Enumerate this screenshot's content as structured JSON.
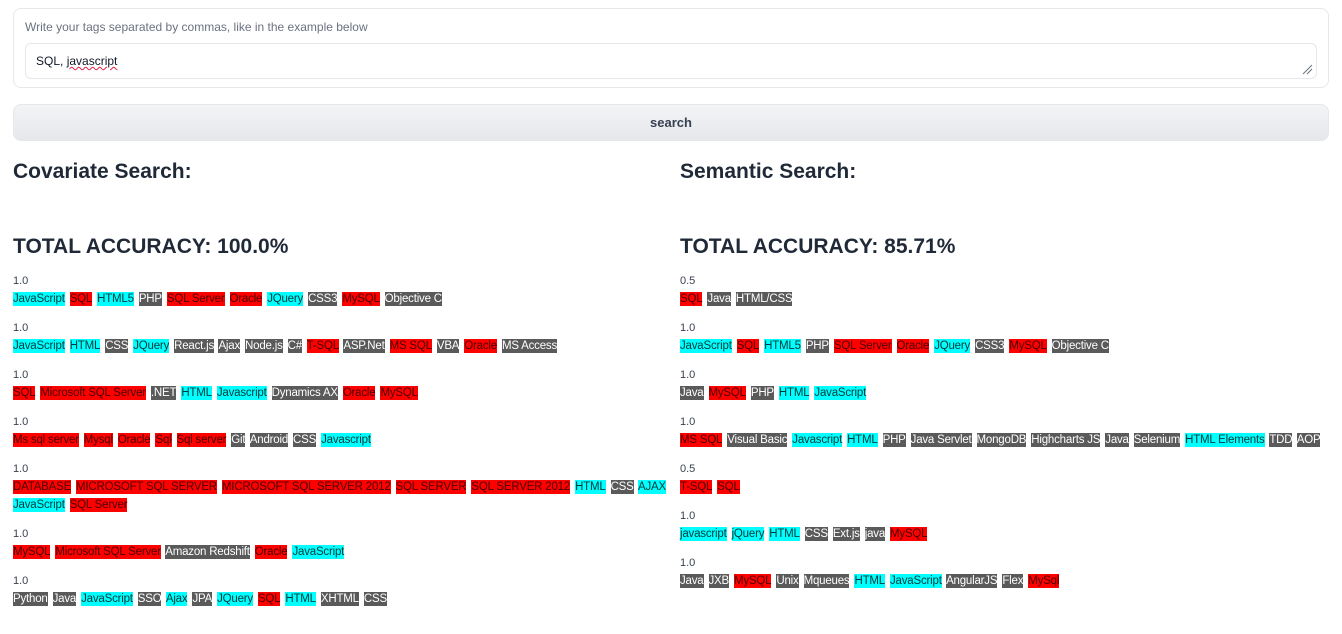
{
  "input": {
    "label": "Write your tags separated by commas, like in the example below",
    "value_plain": "SQL, ",
    "value_misspelled": "javascript"
  },
  "search_button": {
    "label": "search"
  },
  "colors": {
    "red_tag": "#ff0000",
    "cyan_tag": "#00ffff",
    "gray_tag": "#5a5a5a"
  },
  "covariate": {
    "title": "Covariate Search:",
    "accuracy": "TOTAL ACCURACY: 100.0%",
    "results": [
      {
        "score": "1.0",
        "tags": [
          {
            "t": "JavaScript",
            "c": "cyan"
          },
          {
            "t": "SQL",
            "c": "red"
          },
          {
            "t": "HTML5",
            "c": "cyan"
          },
          {
            "t": "PHP",
            "c": "gray"
          },
          {
            "t": "SQL Server",
            "c": "red"
          },
          {
            "t": "Oracle",
            "c": "red"
          },
          {
            "t": "JQuery",
            "c": "cyan"
          },
          {
            "t": "CSS3",
            "c": "gray"
          },
          {
            "t": "MySQL",
            "c": "red"
          },
          {
            "t": "Objective C",
            "c": "gray"
          }
        ]
      },
      {
        "score": "1.0",
        "tags": [
          {
            "t": "JavaScript",
            "c": "cyan"
          },
          {
            "t": "HTML",
            "c": "cyan"
          },
          {
            "t": "CSS",
            "c": "gray"
          },
          {
            "t": "JQuery",
            "c": "cyan"
          },
          {
            "t": "React.js",
            "c": "gray"
          },
          {
            "t": "Ajax",
            "c": "gray"
          },
          {
            "t": "Node.js",
            "c": "gray"
          },
          {
            "t": "C#",
            "c": "gray"
          },
          {
            "t": "T-SQL",
            "c": "red"
          },
          {
            "t": "ASP.Net",
            "c": "gray"
          },
          {
            "t": "MS SQL",
            "c": "red"
          },
          {
            "t": "VBA",
            "c": "gray"
          },
          {
            "t": "Oracle",
            "c": "red"
          },
          {
            "t": "MS Access",
            "c": "gray"
          }
        ]
      },
      {
        "score": "1.0",
        "tags": [
          {
            "t": "SQL",
            "c": "red"
          },
          {
            "t": "Microsoft SQL Server",
            "c": "red"
          },
          {
            "t": ".NET",
            "c": "gray"
          },
          {
            "t": "HTML",
            "c": "cyan"
          },
          {
            "t": "Javascript",
            "c": "cyan"
          },
          {
            "t": "Dynamics AX",
            "c": "gray"
          },
          {
            "t": "Oracle",
            "c": "red"
          },
          {
            "t": "MySQL",
            "c": "red"
          }
        ]
      },
      {
        "score": "1.0",
        "tags": [
          {
            "t": "Ms sql server",
            "c": "red"
          },
          {
            "t": "Mysql",
            "c": "red"
          },
          {
            "t": "Oracle",
            "c": "red"
          },
          {
            "t": "Sql",
            "c": "red"
          },
          {
            "t": "Sql server",
            "c": "red"
          },
          {
            "t": "Git",
            "c": "gray"
          },
          {
            "t": "Android",
            "c": "gray"
          },
          {
            "t": "CSS",
            "c": "gray"
          },
          {
            "t": "Javascript",
            "c": "cyan"
          }
        ]
      },
      {
        "score": "1.0",
        "tags": [
          {
            "t": "DATABASE",
            "c": "red"
          },
          {
            "t": "MICROSOFT SQL SERVER",
            "c": "red"
          },
          {
            "t": "MICROSOFT SQL SERVER 2012",
            "c": "red"
          },
          {
            "t": "SQL SERVER",
            "c": "red"
          },
          {
            "t": "SQL SERVER 2012",
            "c": "red"
          },
          {
            "t": "HTML",
            "c": "cyan"
          },
          {
            "t": "CSS",
            "c": "gray"
          },
          {
            "t": "AJAX",
            "c": "cyan"
          },
          {
            "t": "JavaScript",
            "c": "cyan"
          },
          {
            "t": "SQL Server",
            "c": "red"
          }
        ]
      },
      {
        "score": "1.0",
        "tags": [
          {
            "t": "MySQL",
            "c": "red"
          },
          {
            "t": "Microsoft SQL Server",
            "c": "red"
          },
          {
            "t": "Amazon Redshift",
            "c": "gray"
          },
          {
            "t": "Oracle",
            "c": "red"
          },
          {
            "t": "JavaScript",
            "c": "cyan"
          }
        ]
      },
      {
        "score": "1.0",
        "tags": [
          {
            "t": "Python",
            "c": "gray"
          },
          {
            "t": "Java",
            "c": "gray"
          },
          {
            "t": "JavaScript",
            "c": "cyan"
          },
          {
            "t": "SSO",
            "c": "gray"
          },
          {
            "t": "Ajax",
            "c": "cyan"
          },
          {
            "t": "JPA",
            "c": "gray"
          },
          {
            "t": "JQuery",
            "c": "cyan"
          },
          {
            "t": "SQL",
            "c": "red"
          },
          {
            "t": "HTML",
            "c": "cyan"
          },
          {
            "t": "XHTML",
            "c": "gray"
          },
          {
            "t": "CSS",
            "c": "gray"
          }
        ]
      }
    ]
  },
  "semantic": {
    "title": "Semantic Search:",
    "accuracy": "TOTAL ACCURACY: 85.71%",
    "results": [
      {
        "score": "0.5",
        "tags": [
          {
            "t": "SQL",
            "c": "red"
          },
          {
            "t": "Java",
            "c": "gray"
          },
          {
            "t": "HTML/CSS",
            "c": "gray"
          }
        ]
      },
      {
        "score": "1.0",
        "tags": [
          {
            "t": "JavaScript",
            "c": "cyan"
          },
          {
            "t": "SQL",
            "c": "red"
          },
          {
            "t": "HTML5",
            "c": "cyan"
          },
          {
            "t": "PHP",
            "c": "gray"
          },
          {
            "t": "SQL Server",
            "c": "red"
          },
          {
            "t": "Oracle",
            "c": "red"
          },
          {
            "t": "JQuery",
            "c": "cyan"
          },
          {
            "t": "CSS3",
            "c": "gray"
          },
          {
            "t": "MySQL",
            "c": "red"
          },
          {
            "t": "Objective C",
            "c": "gray"
          }
        ]
      },
      {
        "score": "1.0",
        "tags": [
          {
            "t": "Java",
            "c": "gray"
          },
          {
            "t": "MySQL",
            "c": "red"
          },
          {
            "t": "PHP",
            "c": "gray"
          },
          {
            "t": "HTML",
            "c": "cyan"
          },
          {
            "t": "JavaScript",
            "c": "cyan"
          }
        ]
      },
      {
        "score": "1.0",
        "tags": [
          {
            "t": "MS SQL",
            "c": "red"
          },
          {
            "t": "Visual Basic",
            "c": "gray"
          },
          {
            "t": "Javascript",
            "c": "cyan"
          },
          {
            "t": "HTML",
            "c": "cyan"
          },
          {
            "t": "PHP",
            "c": "gray"
          },
          {
            "t": "Java Servlet",
            "c": "gray"
          },
          {
            "t": "MongoDB",
            "c": "gray"
          },
          {
            "t": "Highcharts JS",
            "c": "gray"
          },
          {
            "t": "Java",
            "c": "gray"
          },
          {
            "t": "Selenium",
            "c": "gray"
          },
          {
            "t": "HTML Elements",
            "c": "cyan"
          },
          {
            "t": "TDD",
            "c": "gray"
          },
          {
            "t": "AOP",
            "c": "gray"
          }
        ]
      },
      {
        "score": "0.5",
        "tags": [
          {
            "t": "T-SQL",
            "c": "red"
          },
          {
            "t": "SQL",
            "c": "red"
          }
        ]
      },
      {
        "score": "1.0",
        "tags": [
          {
            "t": "javascript",
            "c": "cyan"
          },
          {
            "t": "jQuery",
            "c": "cyan"
          },
          {
            "t": "HTML",
            "c": "cyan"
          },
          {
            "t": "CSS",
            "c": "gray"
          },
          {
            "t": "Ext.js",
            "c": "gray"
          },
          {
            "t": "java",
            "c": "gray"
          },
          {
            "t": "MySQL",
            "c": "red"
          }
        ]
      },
      {
        "score": "1.0",
        "tags": [
          {
            "t": "Java",
            "c": "gray"
          },
          {
            "t": "JXB",
            "c": "gray"
          },
          {
            "t": "MySQL",
            "c": "red"
          },
          {
            "t": "Unix",
            "c": "gray"
          },
          {
            "t": "Mqueues",
            "c": "gray"
          },
          {
            "t": "HTML",
            "c": "cyan"
          },
          {
            "t": "JavaScript",
            "c": "cyan"
          },
          {
            "t": "AngularJS",
            "c": "gray"
          },
          {
            "t": "Flex",
            "c": "gray"
          },
          {
            "t": "MySql",
            "c": "red"
          }
        ]
      }
    ]
  }
}
